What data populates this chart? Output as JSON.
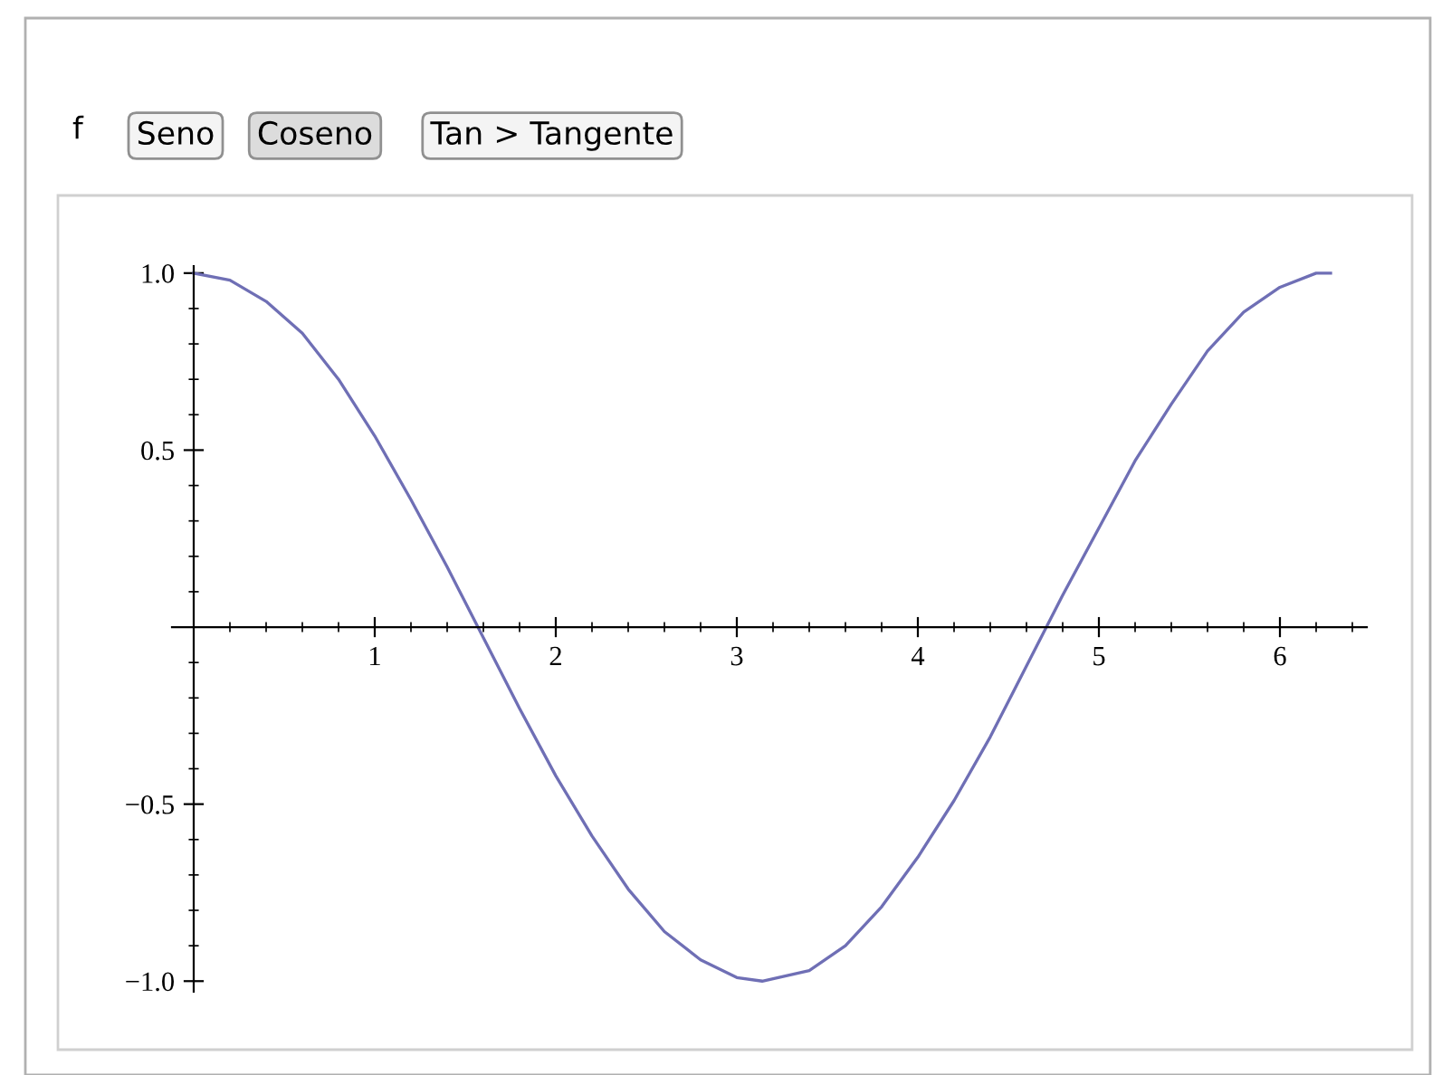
{
  "chart_data": {
    "type": "line",
    "x": [
      0,
      0.2,
      0.4,
      0.6,
      0.8,
      1.0,
      1.2,
      1.4,
      1.6,
      1.8,
      2.0,
      2.2,
      2.4,
      2.6,
      2.8,
      3.0,
      3.14,
      3.4,
      3.6,
      3.8,
      4.0,
      4.2,
      4.4,
      4.6,
      4.8,
      5.0,
      5.2,
      5.4,
      5.6,
      5.8,
      6.0,
      6.2,
      6.28
    ],
    "series": [
      {
        "color": "#6f6fb5",
        "values": [
          1.0,
          0.98,
          0.92,
          0.83,
          0.7,
          0.54,
          0.36,
          0.17,
          -0.03,
          -0.23,
          -0.42,
          -0.59,
          -0.74,
          -0.86,
          -0.94,
          -0.99,
          -1.0,
          -0.97,
          -0.9,
          -0.79,
          -0.65,
          -0.49,
          -0.31,
          -0.11,
          0.09,
          0.28,
          0.47,
          0.63,
          0.78,
          0.89,
          0.96,
          1.0,
          1.0
        ]
      }
    ],
    "xlim": [
      -0.12,
      6.48
    ],
    "ylim": [
      -1.03,
      1.02
    ],
    "xticks": [
      1,
      2,
      3,
      4,
      5,
      6
    ],
    "yticks": [
      {
        "value": -1.0,
        "label": "−1.0"
      },
      {
        "value": -0.5,
        "label": "−0.5"
      },
      {
        "value": 0.5,
        "label": "0.5"
      },
      {
        "value": 1.0,
        "label": "1.0"
      }
    ],
    "grid": false,
    "legend": false,
    "marker": "none",
    "line_style": "solid",
    "annotations": [
      "f",
      "Seno",
      "Coseno",
      "Tan > Tangente"
    ]
  }
}
